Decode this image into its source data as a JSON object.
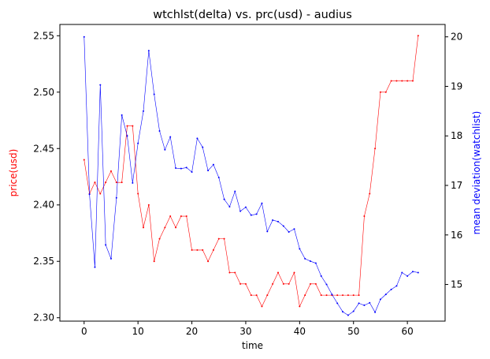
{
  "chart_data": {
    "type": "line",
    "title": "wtchlst(delta) vs. prc(usd) - audius",
    "xlabel": "time",
    "ylabel_left": "price(usd)",
    "ylabel_right": "mean deviation(watchlist)",
    "xlim": [
      -4.5,
      67
    ],
    "ylim_left": [
      2.297,
      2.56
    ],
    "ylim_right": [
      14.26,
      20.25
    ],
    "x_ticks": [
      0,
      10,
      20,
      30,
      40,
      50,
      60
    ],
    "y_left_ticks": [
      2.3,
      2.35,
      2.4,
      2.45,
      2.5,
      2.55
    ],
    "y_right_ticks": [
      15,
      16,
      17,
      18,
      19,
      20
    ],
    "grid": false,
    "legend": "none",
    "series": [
      {
        "name": "price(usd)",
        "axis": "left",
        "color": "#ff0000",
        "values": [
          2.44,
          2.41,
          2.42,
          2.41,
          2.42,
          2.43,
          2.42,
          2.42,
          2.47,
          2.47,
          2.41,
          2.38,
          2.4,
          2.35,
          2.37,
          2.38,
          2.39,
          2.38,
          2.39,
          2.39,
          2.36,
          2.36,
          2.36,
          2.35,
          2.36,
          2.37,
          2.37,
          2.34,
          2.34,
          2.33,
          2.33,
          2.32,
          2.32,
          2.31,
          2.32,
          2.33,
          2.34,
          2.33,
          2.33,
          2.34,
          2.31,
          2.32,
          2.33,
          2.33,
          2.32,
          2.32,
          2.32,
          2.32,
          2.32,
          2.32,
          2.32,
          2.32,
          2.39,
          2.41,
          2.45,
          2.5,
          2.5,
          2.51,
          2.51,
          2.51,
          2.51,
          2.51,
          2.55
        ]
      },
      {
        "name": "mean deviation(watchlist)",
        "axis": "right",
        "color": "#0000ff",
        "values": [
          20.0,
          16.82,
          15.35,
          19.03,
          15.8,
          15.52,
          16.75,
          18.42,
          18.0,
          17.05,
          17.85,
          18.5,
          19.72,
          18.84,
          18.1,
          17.72,
          17.98,
          17.35,
          17.34,
          17.36,
          17.27,
          17.95,
          17.77,
          17.3,
          17.42,
          17.16,
          16.72,
          16.57,
          16.88,
          16.48,
          16.56,
          16.4,
          16.42,
          16.64,
          16.07,
          16.3,
          16.27,
          16.18,
          16.06,
          16.12,
          15.72,
          15.52,
          15.47,
          15.43,
          15.17,
          15.0,
          14.8,
          14.62,
          14.45,
          14.38,
          14.46,
          14.62,
          14.58,
          14.63,
          14.44,
          14.7,
          14.8,
          14.9,
          14.97,
          15.24,
          15.17,
          15.26,
          15.24
        ]
      }
    ]
  }
}
